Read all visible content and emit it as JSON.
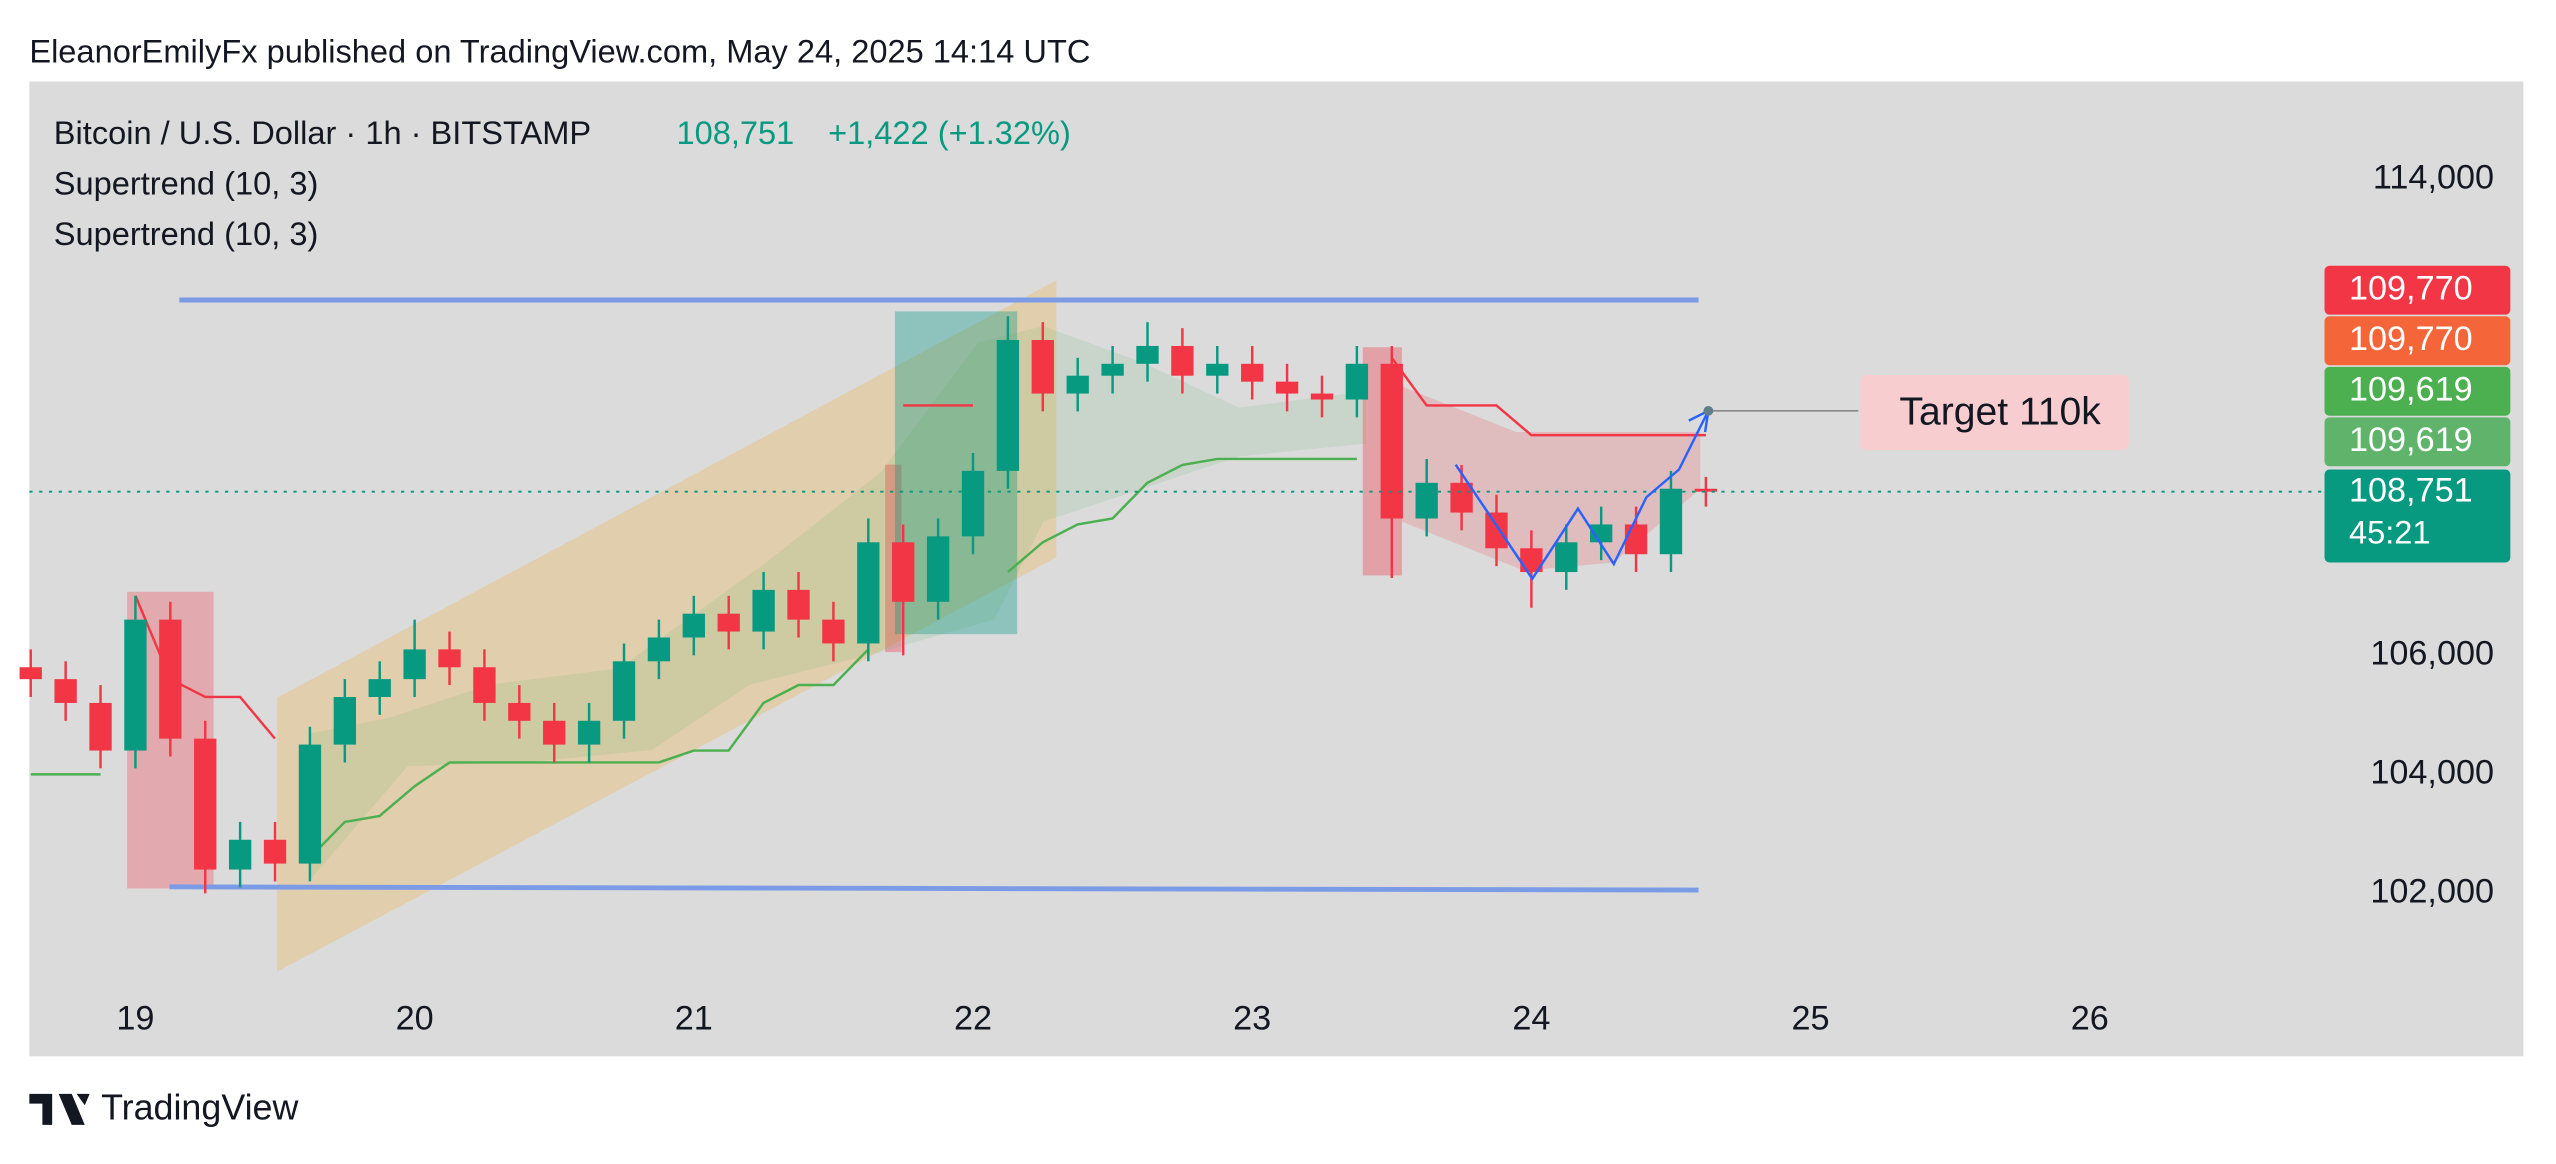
{
  "header": {
    "attribution": "EleanorEmilyFx published on TradingView.com, May 24, 2025 14:14 UTC"
  },
  "chart_data": {
    "type": "candlestick",
    "title": "Bitcoin / U.S. Dollar · 1h · BITSTAMP",
    "last_price": {
      "value": 108751,
      "label": "108,751"
    },
    "change": "+1,422 (+1.32%)",
    "countdown": "45:21",
    "annotation": "Target 110k",
    "up_color": "#089981",
    "down_color": "#f23645",
    "x": [
      18.625,
      18.75,
      18.875,
      19,
      19.125,
      19.25,
      19.375,
      19.5,
      19.625,
      19.75,
      19.875,
      20,
      20.125,
      20.25,
      20.375,
      20.5,
      20.625,
      20.75,
      20.875,
      21,
      21.125,
      21.25,
      21.375,
      21.5,
      21.625,
      21.75,
      21.875,
      22,
      22.125,
      22.25,
      22.375,
      22.5,
      22.625,
      22.75,
      22.875,
      23,
      23.125,
      23.25,
      23.375,
      23.5,
      23.625,
      23.75,
      23.875,
      24,
      24.125,
      24.25,
      24.375,
      24.5,
      24.625
    ],
    "open": [
      105800,
      105600,
      105200,
      104400,
      106600,
      104600,
      102400,
      102900,
      102500,
      104500,
      105300,
      105600,
      106100,
      105800,
      105200,
      104900,
      104500,
      104900,
      105900,
      106300,
      106700,
      106400,
      107100,
      106600,
      106200,
      107900,
      106900,
      108000,
      109100,
      111300,
      110400,
      110700,
      110900,
      111200,
      110700,
      110900,
      110600,
      110400,
      110300,
      110900,
      108300,
      108900,
      108400,
      107800,
      107400,
      107900,
      108200,
      107700,
      108800
    ],
    "high": [
      106100,
      105900,
      105500,
      107000,
      106900,
      104900,
      103200,
      103200,
      104800,
      105600,
      105900,
      106600,
      106400,
      106100,
      105500,
      105200,
      105200,
      106200,
      106600,
      107000,
      107000,
      107400,
      107400,
      106900,
      108300,
      108200,
      108300,
      109400,
      111700,
      111600,
      111000,
      111200,
      111600,
      111500,
      111200,
      111200,
      110900,
      110700,
      111200,
      111200,
      109300,
      109200,
      108700,
      108100,
      108200,
      108500,
      108500,
      109100,
      109000
    ],
    "low": [
      105300,
      104900,
      104100,
      104100,
      104300,
      102000,
      102100,
      102200,
      102200,
      104200,
      105000,
      105300,
      105500,
      104900,
      104600,
      104200,
      104200,
      104600,
      105600,
      106000,
      106100,
      106100,
      106300,
      105900,
      105900,
      106000,
      106600,
      107700,
      108800,
      110100,
      110100,
      110400,
      110600,
      110400,
      110400,
      110300,
      110100,
      110000,
      110000,
      107300,
      108000,
      108100,
      107500,
      106800,
      107100,
      107600,
      107400,
      107400,
      108500
    ],
    "close": [
      105600,
      105200,
      104400,
      106600,
      104600,
      102400,
      102900,
      102500,
      104500,
      105300,
      105600,
      106100,
      105800,
      105200,
      104900,
      104500,
      104900,
      105900,
      106300,
      106700,
      106400,
      107100,
      106600,
      106200,
      107900,
      106900,
      108000,
      109100,
      111300,
      110400,
      110700,
      110900,
      111200,
      110700,
      110900,
      110600,
      110400,
      110300,
      110900,
      108300,
      108900,
      108400,
      107800,
      107400,
      107900,
      108200,
      107700,
      108800,
      108751
    ],
    "series": [
      {
        "name": "Supertrend (10, 3)",
        "color": "#4caf50",
        "values": [
          104000,
          104000,
          104000,
          null,
          null,
          null,
          null,
          null,
          102600,
          103200,
          103300,
          103800,
          104200,
          104200,
          104200,
          104200,
          104200,
          104200,
          104200,
          104400,
          104400,
          105200,
          105500,
          105500,
          106100,
          null,
          null,
          null,
          107400,
          107900,
          108200,
          108300,
          108900,
          109200,
          109300,
          109300,
          109300,
          109300,
          109300,
          null,
          null,
          null,
          null,
          null,
          null,
          null,
          null,
          null,
          null
        ]
      },
      {
        "name": "Supertrend (10, 3)",
        "color": "#f23645",
        "values": [
          null,
          null,
          null,
          107000,
          105600,
          105300,
          105300,
          104600,
          null,
          null,
          null,
          null,
          null,
          null,
          null,
          null,
          null,
          null,
          null,
          null,
          null,
          null,
          null,
          null,
          null,
          110200,
          110200,
          110200,
          null,
          null,
          null,
          null,
          null,
          null,
          null,
          null,
          null,
          null,
          null,
          111000,
          110200,
          110200,
          110200,
          109700,
          109700,
          109700,
          109700,
          109700,
          109700
        ]
      }
    ],
    "price_labels": [
      {
        "value": 109770,
        "label": "109,770",
        "color": "#f23645"
      },
      {
        "value": 109770,
        "label": "109,770",
        "color": "#f5653a"
      },
      {
        "value": 109619,
        "label": "109,619",
        "color": "#4caf50"
      },
      {
        "value": 109619,
        "label": "109,619",
        "color": "#5fb36a"
      }
    ],
    "xlim": [
      18.62,
      26.8
    ],
    "xticks": [
      19,
      20,
      21,
      22,
      23,
      24,
      25,
      26
    ],
    "ylim": [
      100438,
      115644
    ],
    "yticks": [
      {
        "value": 102000,
        "label": "102,000"
      },
      {
        "value": 104000,
        "label": "104,000"
      },
      {
        "value": 106000,
        "label": "106,000"
      },
      {
        "value": 114000,
        "label": "114,000"
      }
    ],
    "grid": false
  },
  "footer": {
    "brand": "TradingView"
  }
}
